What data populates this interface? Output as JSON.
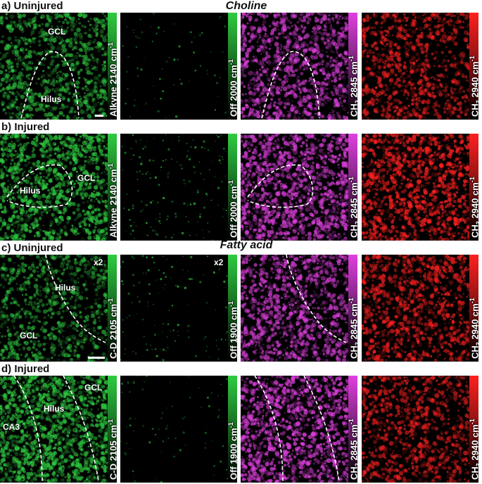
{
  "sections": {
    "choline": "Choline",
    "fatty_acid": "Fatty acid"
  },
  "rows": [
    {
      "letter": "a)",
      "label": "Uninjured",
      "regions": [
        "GCL",
        "Hilus"
      ],
      "channels": [
        {
          "name": "Alkyne 2140 cm-1",
          "color": "#2ecc40"
        },
        {
          "name": "Off 2000 cm-1",
          "color": "#2ecc40"
        },
        {
          "name": "CH2 2845 cm-1",
          "color": "#e040e0"
        },
        {
          "name": "CH3 2940 cm-1",
          "color": "#ff2020"
        }
      ]
    },
    {
      "letter": "b)",
      "label": "Injured",
      "regions": [
        "GCL",
        "Hilus"
      ],
      "channels": [
        {
          "name": "Alkyne 2140 cm-1",
          "color": "#2ecc40"
        },
        {
          "name": "Off 2000 cm-1",
          "color": "#2ecc40"
        },
        {
          "name": "CH2 2845 cm-1",
          "color": "#e040e0"
        },
        {
          "name": "CH3 2940 cm-1",
          "color": "#ff2020"
        }
      ]
    },
    {
      "letter": "c)",
      "label": "Uninjured",
      "regions": [
        "Hilus",
        "GCL"
      ],
      "magnification": "x2",
      "channels": [
        {
          "name": "C-D 2105 cm-1",
          "color": "#2ecc40"
        },
        {
          "name": "Off 1900 cm-1",
          "color": "#2ecc40"
        },
        {
          "name": "CH2 2845 cm-1",
          "color": "#e040e0"
        },
        {
          "name": "CH3 2940 cm-1",
          "color": "#ff2020"
        }
      ]
    },
    {
      "letter": "d)",
      "label": "Injured",
      "regions": [
        "GCL",
        "Hilus",
        "CA3"
      ],
      "channels": [
        {
          "name": "C-D 2105 cm-1",
          "color": "#2ecc40"
        },
        {
          "name": "Off 1900 cm-1",
          "color": "#2ecc40"
        },
        {
          "name": "CH2 2845 cm-1",
          "color": "#e040e0"
        },
        {
          "name": "CH3 2940 cm-1",
          "color": "#ff2020"
        }
      ]
    }
  ],
  "labels": {
    "a_title": "a) Uninjured",
    "b_title": "b) Injured",
    "c_title": "c) Uninjured",
    "d_title": "d) Injured",
    "gcl": "GCL",
    "hilus": "Hilus",
    "ca3": "CA3",
    "x2": "x2",
    "a_ch1": "Alkyne 2140 cm",
    "a_ch2": "Off 2000 cm",
    "a_ch3": "CH",
    "a_ch3b": "2845 cm",
    "a_ch4": "CH",
    "a_ch4b": "2940 cm",
    "c_ch1": "C-D 2105 cm",
    "c_ch2": "Off 1900 cm",
    "sub2": "2",
    "sub3": "3",
    "sup": "-1"
  }
}
